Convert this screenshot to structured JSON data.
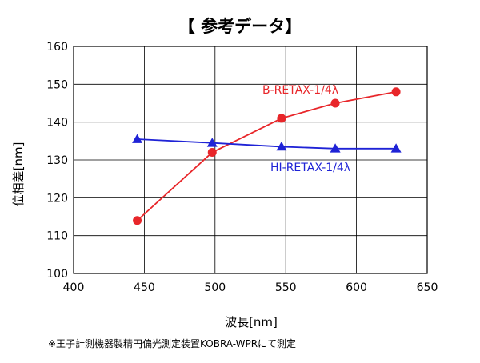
{
  "chart_data": {
    "type": "line",
    "title": "【 参考データ】",
    "xlabel": "波長[nm]",
    "ylabel": "位相差[nm]",
    "xlim": [
      400,
      650
    ],
    "ylim": [
      100,
      160
    ],
    "xticks": [
      400,
      450,
      500,
      550,
      600,
      650
    ],
    "yticks": [
      100,
      110,
      120,
      130,
      140,
      150,
      160
    ],
    "xtick_labels": [
      "400",
      "450",
      "500",
      "550",
      "600",
      "650"
    ],
    "ytick_labels": [
      "100",
      "110",
      "120",
      "130",
      "140",
      "150",
      "160"
    ],
    "grid": true,
    "series": [
      {
        "name": "B-RETAX-1/4λ",
        "color": "#e8262a",
        "marker": "circle",
        "x": [
          445,
          498,
          547,
          585,
          628
        ],
        "y": [
          114,
          132,
          141,
          145,
          148
        ]
      },
      {
        "name": "HI-RETAX-1/4λ",
        "color": "#1f23d6",
        "marker": "triangle",
        "x": [
          445,
          498,
          547,
          585,
          628
        ],
        "y": [
          135.5,
          134.5,
          133.5,
          133,
          133
        ]
      }
    ]
  },
  "footnote": "※王子計測機器製精円偏光測定装置KOBRA-WPRにて測定"
}
